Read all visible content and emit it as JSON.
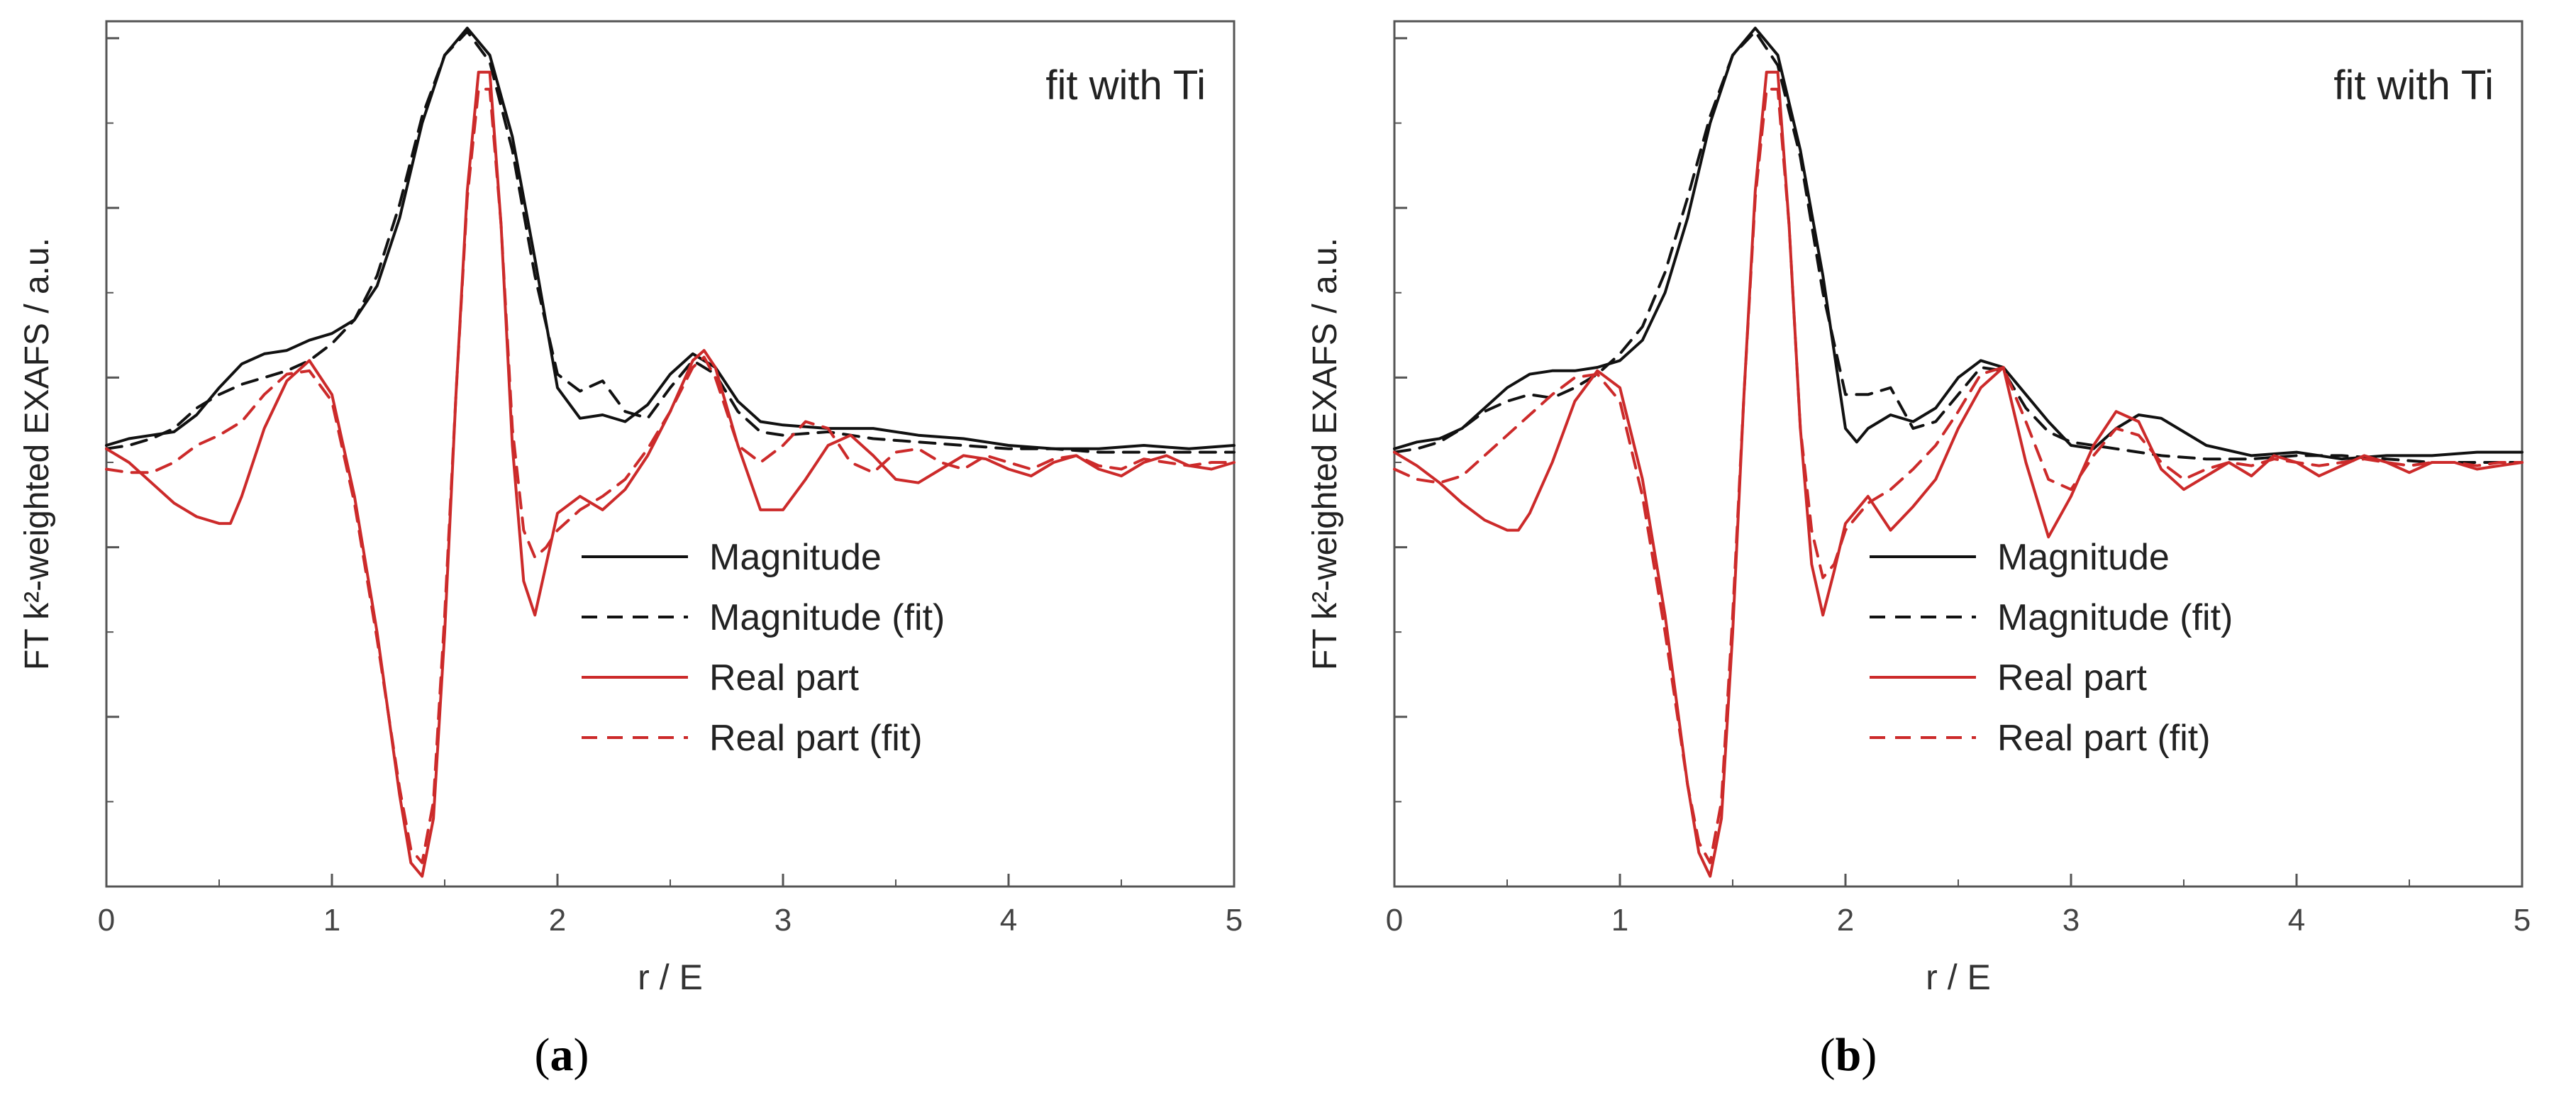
{
  "chart_data": [
    {
      "type": "line",
      "panel_label": "a",
      "annotation": "fit with Ti",
      "xlabel": "r / E",
      "ylabel": "FT k²-weighted EXAFS / a.u.",
      "xlim": [
        0,
        5
      ],
      "ylim": [
        -1.25,
        1.3
      ],
      "xticks": [
        "0",
        "1",
        "2",
        "3",
        "4",
        "5"
      ],
      "yticks_label_shown": false,
      "legend_position": "bottom-right",
      "series": [
        {
          "name": "Magnitude",
          "color": "#111111",
          "dash": "solid",
          "x": [
            0,
            0.1,
            0.2,
            0.3,
            0.4,
            0.5,
            0.6,
            0.7,
            0.8,
            0.9,
            1.0,
            1.1,
            1.2,
            1.3,
            1.4,
            1.5,
            1.6,
            1.7,
            1.8,
            1.9,
            2.0,
            2.1,
            2.2,
            2.3,
            2.4,
            2.5,
            2.6,
            2.7,
            2.8,
            2.9,
            3.0,
            3.2,
            3.4,
            3.6,
            3.8,
            4.0,
            4.2,
            4.4,
            4.6,
            4.8,
            5.0
          ],
          "y": [
            0.05,
            0.07,
            0.08,
            0.09,
            0.14,
            0.22,
            0.29,
            0.32,
            0.33,
            0.36,
            0.38,
            0.42,
            0.52,
            0.72,
            1.0,
            1.2,
            1.28,
            1.2,
            0.96,
            0.6,
            0.22,
            0.13,
            0.14,
            0.12,
            0.17,
            0.26,
            0.32,
            0.28,
            0.18,
            0.12,
            0.11,
            0.1,
            0.1,
            0.08,
            0.07,
            0.05,
            0.04,
            0.04,
            0.05,
            0.04,
            0.05
          ]
        },
        {
          "name": "Magnitude (fit)",
          "color": "#111111",
          "dash": "dashed",
          "x": [
            0,
            0.1,
            0.2,
            0.3,
            0.4,
            0.5,
            0.6,
            0.7,
            0.8,
            0.9,
            1.0,
            1.1,
            1.2,
            1.3,
            1.4,
            1.5,
            1.6,
            1.7,
            1.8,
            1.9,
            2.0,
            2.1,
            2.2,
            2.3,
            2.4,
            2.5,
            2.6,
            2.7,
            2.8,
            2.9,
            3.0,
            3.2,
            3.4,
            3.6,
            3.8,
            4.0,
            4.2,
            4.4,
            4.6,
            4.8,
            5.0
          ],
          "y": [
            0.04,
            0.05,
            0.07,
            0.1,
            0.16,
            0.2,
            0.23,
            0.25,
            0.27,
            0.3,
            0.35,
            0.42,
            0.55,
            0.76,
            1.02,
            1.2,
            1.27,
            1.18,
            0.92,
            0.55,
            0.26,
            0.21,
            0.24,
            0.15,
            0.13,
            0.22,
            0.3,
            0.26,
            0.15,
            0.09,
            0.08,
            0.09,
            0.07,
            0.06,
            0.05,
            0.04,
            0.04,
            0.03,
            0.03,
            0.03,
            0.03
          ]
        },
        {
          "name": "Real part",
          "color": "#cc2a2a",
          "dash": "solid",
          "x": [
            0,
            0.1,
            0.2,
            0.3,
            0.4,
            0.5,
            0.55,
            0.6,
            0.7,
            0.8,
            0.9,
            1.0,
            1.1,
            1.2,
            1.3,
            1.35,
            1.4,
            1.45,
            1.5,
            1.55,
            1.6,
            1.65,
            1.7,
            1.75,
            1.8,
            1.85,
            1.9,
            1.95,
            2.0,
            2.1,
            2.2,
            2.3,
            2.4,
            2.5,
            2.6,
            2.65,
            2.7,
            2.8,
            2.9,
            3.0,
            3.1,
            3.2,
            3.3,
            3.4,
            3.5,
            3.6,
            3.7,
            3.8,
            3.9,
            4.0,
            4.1,
            4.2,
            4.3,
            4.4,
            4.5,
            4.6,
            4.7,
            4.8,
            4.9,
            5.0
          ],
          "y": [
            0.04,
            0.0,
            -0.06,
            -0.12,
            -0.16,
            -0.18,
            -0.18,
            -0.1,
            0.1,
            0.24,
            0.3,
            0.2,
            -0.1,
            -0.5,
            -0.98,
            -1.18,
            -1.22,
            -1.05,
            -0.5,
            0.2,
            0.8,
            1.15,
            1.15,
            0.7,
            0.05,
            -0.35,
            -0.45,
            -0.3,
            -0.15,
            -0.1,
            -0.14,
            -0.08,
            0.02,
            0.15,
            0.3,
            0.33,
            0.28,
            0.05,
            -0.14,
            -0.14,
            -0.05,
            0.05,
            0.08,
            0.02,
            -0.05,
            -0.06,
            -0.02,
            0.02,
            0.01,
            -0.02,
            -0.04,
            0.0,
            0.02,
            -0.02,
            -0.04,
            0.0,
            0.02,
            -0.01,
            -0.02,
            0.0
          ]
        },
        {
          "name": "Real part (fit)",
          "color": "#cc2a2a",
          "dash": "dashed",
          "x": [
            0,
            0.1,
            0.2,
            0.3,
            0.4,
            0.5,
            0.6,
            0.7,
            0.8,
            0.9,
            1.0,
            1.1,
            1.2,
            1.3,
            1.35,
            1.4,
            1.45,
            1.5,
            1.55,
            1.6,
            1.65,
            1.7,
            1.75,
            1.8,
            1.85,
            1.9,
            1.95,
            2.0,
            2.1,
            2.2,
            2.3,
            2.4,
            2.5,
            2.6,
            2.65,
            2.7,
            2.8,
            2.9,
            3.0,
            3.1,
            3.2,
            3.3,
            3.4,
            3.5,
            3.6,
            3.7,
            3.8,
            3.9,
            4.0,
            4.1,
            4.2,
            4.3,
            4.4,
            4.5,
            4.6,
            4.7,
            4.8,
            4.9,
            5.0
          ],
          "y": [
            -0.02,
            -0.03,
            -0.03,
            0.0,
            0.05,
            0.08,
            0.12,
            0.2,
            0.26,
            0.27,
            0.18,
            -0.12,
            -0.52,
            -0.96,
            -1.14,
            -1.18,
            -1.0,
            -0.45,
            0.2,
            0.78,
            1.1,
            1.1,
            0.7,
            0.1,
            -0.2,
            -0.28,
            -0.25,
            -0.2,
            -0.14,
            -0.1,
            -0.05,
            0.04,
            0.15,
            0.28,
            0.31,
            0.25,
            0.05,
            0.0,
            0.05,
            0.12,
            0.1,
            0.0,
            -0.03,
            0.03,
            0.04,
            0.0,
            -0.02,
            0.02,
            0.0,
            -0.02,
            0.01,
            0.02,
            -0.01,
            -0.02,
            0.01,
            0.0,
            -0.01,
            0.0,
            0.0
          ]
        }
      ]
    },
    {
      "type": "line",
      "panel_label": "b",
      "annotation": "fit with Ti",
      "xlabel": "r / E",
      "ylabel": "FT k²-weighted EXAFS / a.u.",
      "xlim": [
        0,
        5
      ],
      "ylim": [
        -1.25,
        1.3
      ],
      "xticks": [
        "0",
        "1",
        "2",
        "3",
        "4",
        "5"
      ],
      "yticks_label_shown": false,
      "legend_position": "bottom-right",
      "series": [
        {
          "name": "Magnitude",
          "color": "#111111",
          "dash": "solid",
          "x": [
            0,
            0.1,
            0.2,
            0.3,
            0.4,
            0.5,
            0.6,
            0.7,
            0.8,
            0.9,
            1.0,
            1.1,
            1.2,
            1.3,
            1.4,
            1.5,
            1.6,
            1.7,
            1.8,
            1.9,
            2.0,
            2.05,
            2.1,
            2.2,
            2.3,
            2.4,
            2.5,
            2.6,
            2.7,
            2.8,
            2.9,
            3.0,
            3.1,
            3.2,
            3.3,
            3.4,
            3.5,
            3.6,
            3.8,
            4.0,
            4.2,
            4.4,
            4.6,
            4.8,
            5.0
          ],
          "y": [
            0.04,
            0.06,
            0.07,
            0.1,
            0.16,
            0.22,
            0.26,
            0.27,
            0.27,
            0.28,
            0.3,
            0.36,
            0.5,
            0.72,
            1.0,
            1.2,
            1.28,
            1.2,
            0.92,
            0.55,
            0.1,
            0.06,
            0.1,
            0.14,
            0.12,
            0.16,
            0.25,
            0.3,
            0.28,
            0.2,
            0.12,
            0.05,
            0.04,
            0.1,
            0.14,
            0.13,
            0.09,
            0.05,
            0.02,
            0.03,
            0.01,
            0.02,
            0.02,
            0.03,
            0.03
          ]
        },
        {
          "name": "Magnitude (fit)",
          "color": "#111111",
          "dash": "dashed",
          "x": [
            0,
            0.1,
            0.2,
            0.3,
            0.4,
            0.5,
            0.6,
            0.7,
            0.8,
            0.9,
            1.0,
            1.1,
            1.2,
            1.3,
            1.4,
            1.5,
            1.6,
            1.7,
            1.8,
            1.9,
            2.0,
            2.1,
            2.2,
            2.3,
            2.4,
            2.5,
            2.6,
            2.7,
            2.8,
            2.9,
            3.0,
            3.2,
            3.4,
            3.6,
            3.8,
            4.0,
            4.2,
            4.4,
            4.6,
            4.8,
            5.0
          ],
          "y": [
            0.03,
            0.04,
            0.06,
            0.1,
            0.15,
            0.18,
            0.2,
            0.19,
            0.22,
            0.26,
            0.32,
            0.4,
            0.56,
            0.78,
            1.02,
            1.2,
            1.27,
            1.17,
            0.9,
            0.5,
            0.2,
            0.2,
            0.22,
            0.1,
            0.12,
            0.2,
            0.28,
            0.27,
            0.16,
            0.09,
            0.06,
            0.04,
            0.02,
            0.01,
            0.01,
            0.02,
            0.02,
            0.01,
            0.0,
            0.0,
            0.0
          ]
        },
        {
          "name": "Real part",
          "color": "#cc2a2a",
          "dash": "solid",
          "x": [
            0,
            0.1,
            0.2,
            0.3,
            0.4,
            0.5,
            0.55,
            0.6,
            0.7,
            0.8,
            0.9,
            1.0,
            1.1,
            1.2,
            1.3,
            1.35,
            1.4,
            1.45,
            1.5,
            1.55,
            1.6,
            1.65,
            1.7,
            1.75,
            1.8,
            1.85,
            1.9,
            1.95,
            2.0,
            2.1,
            2.2,
            2.3,
            2.4,
            2.5,
            2.6,
            2.7,
            2.8,
            2.9,
            3.0,
            3.1,
            3.2,
            3.3,
            3.4,
            3.5,
            3.6,
            3.7,
            3.8,
            3.9,
            4.0,
            4.1,
            4.2,
            4.3,
            4.4,
            4.5,
            4.6,
            4.7,
            4.8,
            4.9,
            5.0
          ],
          "y": [
            0.03,
            -0.01,
            -0.06,
            -0.12,
            -0.17,
            -0.2,
            -0.2,
            -0.15,
            0.0,
            0.18,
            0.27,
            0.22,
            -0.05,
            -0.45,
            -0.95,
            -1.15,
            -1.22,
            -1.05,
            -0.5,
            0.2,
            0.8,
            1.15,
            1.15,
            0.7,
            0.1,
            -0.3,
            -0.45,
            -0.32,
            -0.18,
            -0.1,
            -0.2,
            -0.13,
            -0.05,
            0.1,
            0.22,
            0.28,
            0.0,
            -0.22,
            -0.1,
            0.05,
            0.15,
            0.12,
            -0.02,
            -0.08,
            -0.04,
            0.0,
            -0.04,
            0.02,
            0.0,
            -0.04,
            -0.01,
            0.02,
            0.0,
            -0.03,
            0.0,
            0.0,
            -0.02,
            -0.01,
            0.0
          ]
        },
        {
          "name": "Real part (fit)",
          "color": "#cc2a2a",
          "dash": "dashed",
          "x": [
            0,
            0.1,
            0.2,
            0.3,
            0.4,
            0.5,
            0.6,
            0.7,
            0.8,
            0.9,
            1.0,
            1.1,
            1.2,
            1.3,
            1.35,
            1.4,
            1.45,
            1.5,
            1.55,
            1.6,
            1.65,
            1.7,
            1.75,
            1.8,
            1.85,
            1.9,
            1.95,
            2.0,
            2.1,
            2.2,
            2.3,
            2.4,
            2.5,
            2.6,
            2.7,
            2.8,
            2.9,
            3.0,
            3.1,
            3.2,
            3.3,
            3.4,
            3.5,
            3.6,
            3.7,
            3.8,
            3.9,
            4.0,
            4.1,
            4.2,
            4.3,
            4.4,
            4.5,
            4.6,
            4.7,
            4.8,
            4.9,
            5.0
          ],
          "y": [
            -0.02,
            -0.05,
            -0.06,
            -0.04,
            0.02,
            0.08,
            0.14,
            0.2,
            0.25,
            0.26,
            0.18,
            -0.1,
            -0.5,
            -0.95,
            -1.12,
            -1.18,
            -1.0,
            -0.45,
            0.2,
            0.78,
            1.1,
            1.1,
            0.7,
            0.1,
            -0.2,
            -0.34,
            -0.3,
            -0.2,
            -0.12,
            -0.08,
            -0.02,
            0.05,
            0.15,
            0.26,
            0.28,
            0.12,
            -0.05,
            -0.08,
            0.02,
            0.1,
            0.08,
            0.0,
            -0.05,
            -0.02,
            0.0,
            -0.01,
            0.01,
            0.0,
            -0.01,
            0.0,
            0.01,
            0.0,
            -0.01,
            0.0,
            0.0,
            -0.01,
            0.0,
            0.0
          ]
        }
      ]
    }
  ]
}
